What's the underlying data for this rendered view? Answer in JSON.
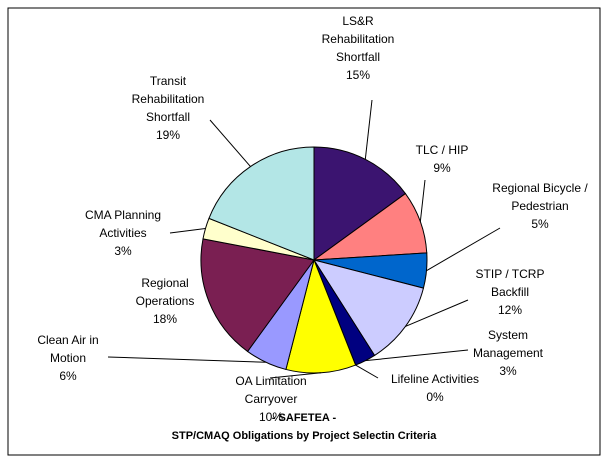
{
  "chart_data": {
    "type": "pie",
    "title": "- SAFETEA -",
    "subtitle": "STP/CMAQ Obligations by Project Selectin Criteria",
    "categories": [
      "LS&R Rehabilitation Shortfall",
      "TLC / HIP",
      "Regional Bicycle / Pedestrian",
      "STIP / TCRP Backfill",
      "System Management",
      "Lifeline Activities",
      "OA Limitation Carryover",
      "Clean Air in Motion",
      "Regional Operations",
      "CMA Planning Activities",
      "Transit Rehabilitation Shortfall"
    ],
    "values": [
      15,
      9,
      5,
      12,
      3,
      0,
      10,
      6,
      18,
      3,
      19
    ],
    "value_labels": [
      "15%",
      "9%",
      "5%",
      "12%",
      "3%",
      "0%",
      "10%",
      "6%",
      "18%",
      "3%",
      "19%"
    ],
    "colors": [
      "#3b1470",
      "#ff8080",
      "#0066cc",
      "#ccccff",
      "#000080",
      "#ff00ff",
      "#ffff00",
      "#9999ff",
      "#7a1f52",
      "#ffffcc",
      "#b3e6e6"
    ]
  }
}
